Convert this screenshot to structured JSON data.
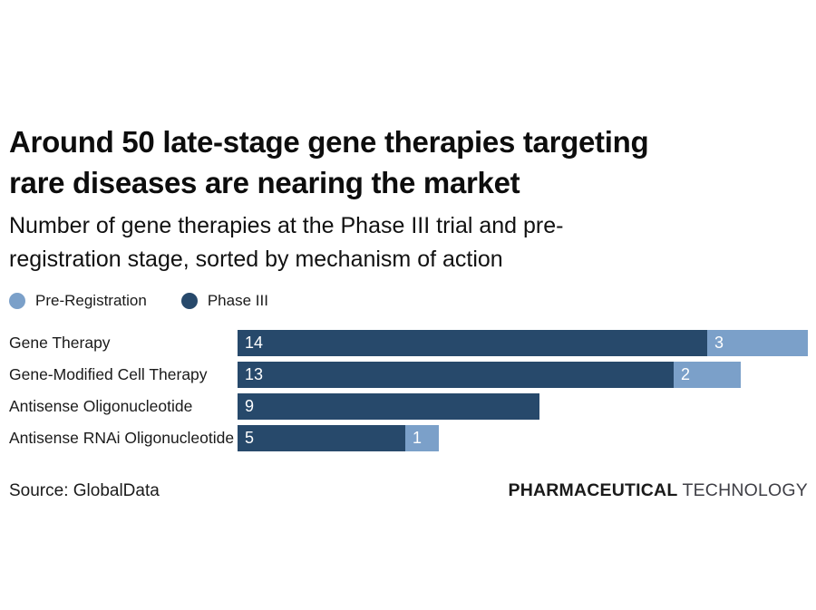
{
  "header": {
    "title_lines": [
      "Around 50 late-stage gene therapies targeting",
      "rare diseases are nearing the market"
    ],
    "subtitle_lines": [
      "Number of gene therapies at the Phase III trial and pre-",
      "registration stage, sorted by mechanism of action"
    ]
  },
  "legend": {
    "items": [
      {
        "label": "Pre-Registration",
        "color": "#7BA0C9"
      },
      {
        "label": "Phase III",
        "color": "#27496B"
      }
    ]
  },
  "chart_data": {
    "type": "bar",
    "orientation": "horizontal",
    "stacked": true,
    "categories": [
      "Gene Therapy",
      "Gene-Modified Cell Therapy",
      "Antisense Oligonucleotide",
      "Antisense RNAi Oligonucleotide"
    ],
    "series": [
      {
        "name": "Phase III",
        "color": "#27496B",
        "values": [
          14,
          13,
          9,
          5
        ]
      },
      {
        "name": "Pre-Registration",
        "color": "#7BA0C9",
        "values": [
          3,
          2,
          0,
          1
        ]
      }
    ],
    "xlim": [
      0,
      17
    ],
    "value_labels_shown": true,
    "grid": false,
    "legend_position": "top-left"
  },
  "footer": {
    "source": "Source: GlobalData",
    "brand_bold": "PHARMACEUTICAL",
    "brand_light": "TECHNOLOGY"
  }
}
